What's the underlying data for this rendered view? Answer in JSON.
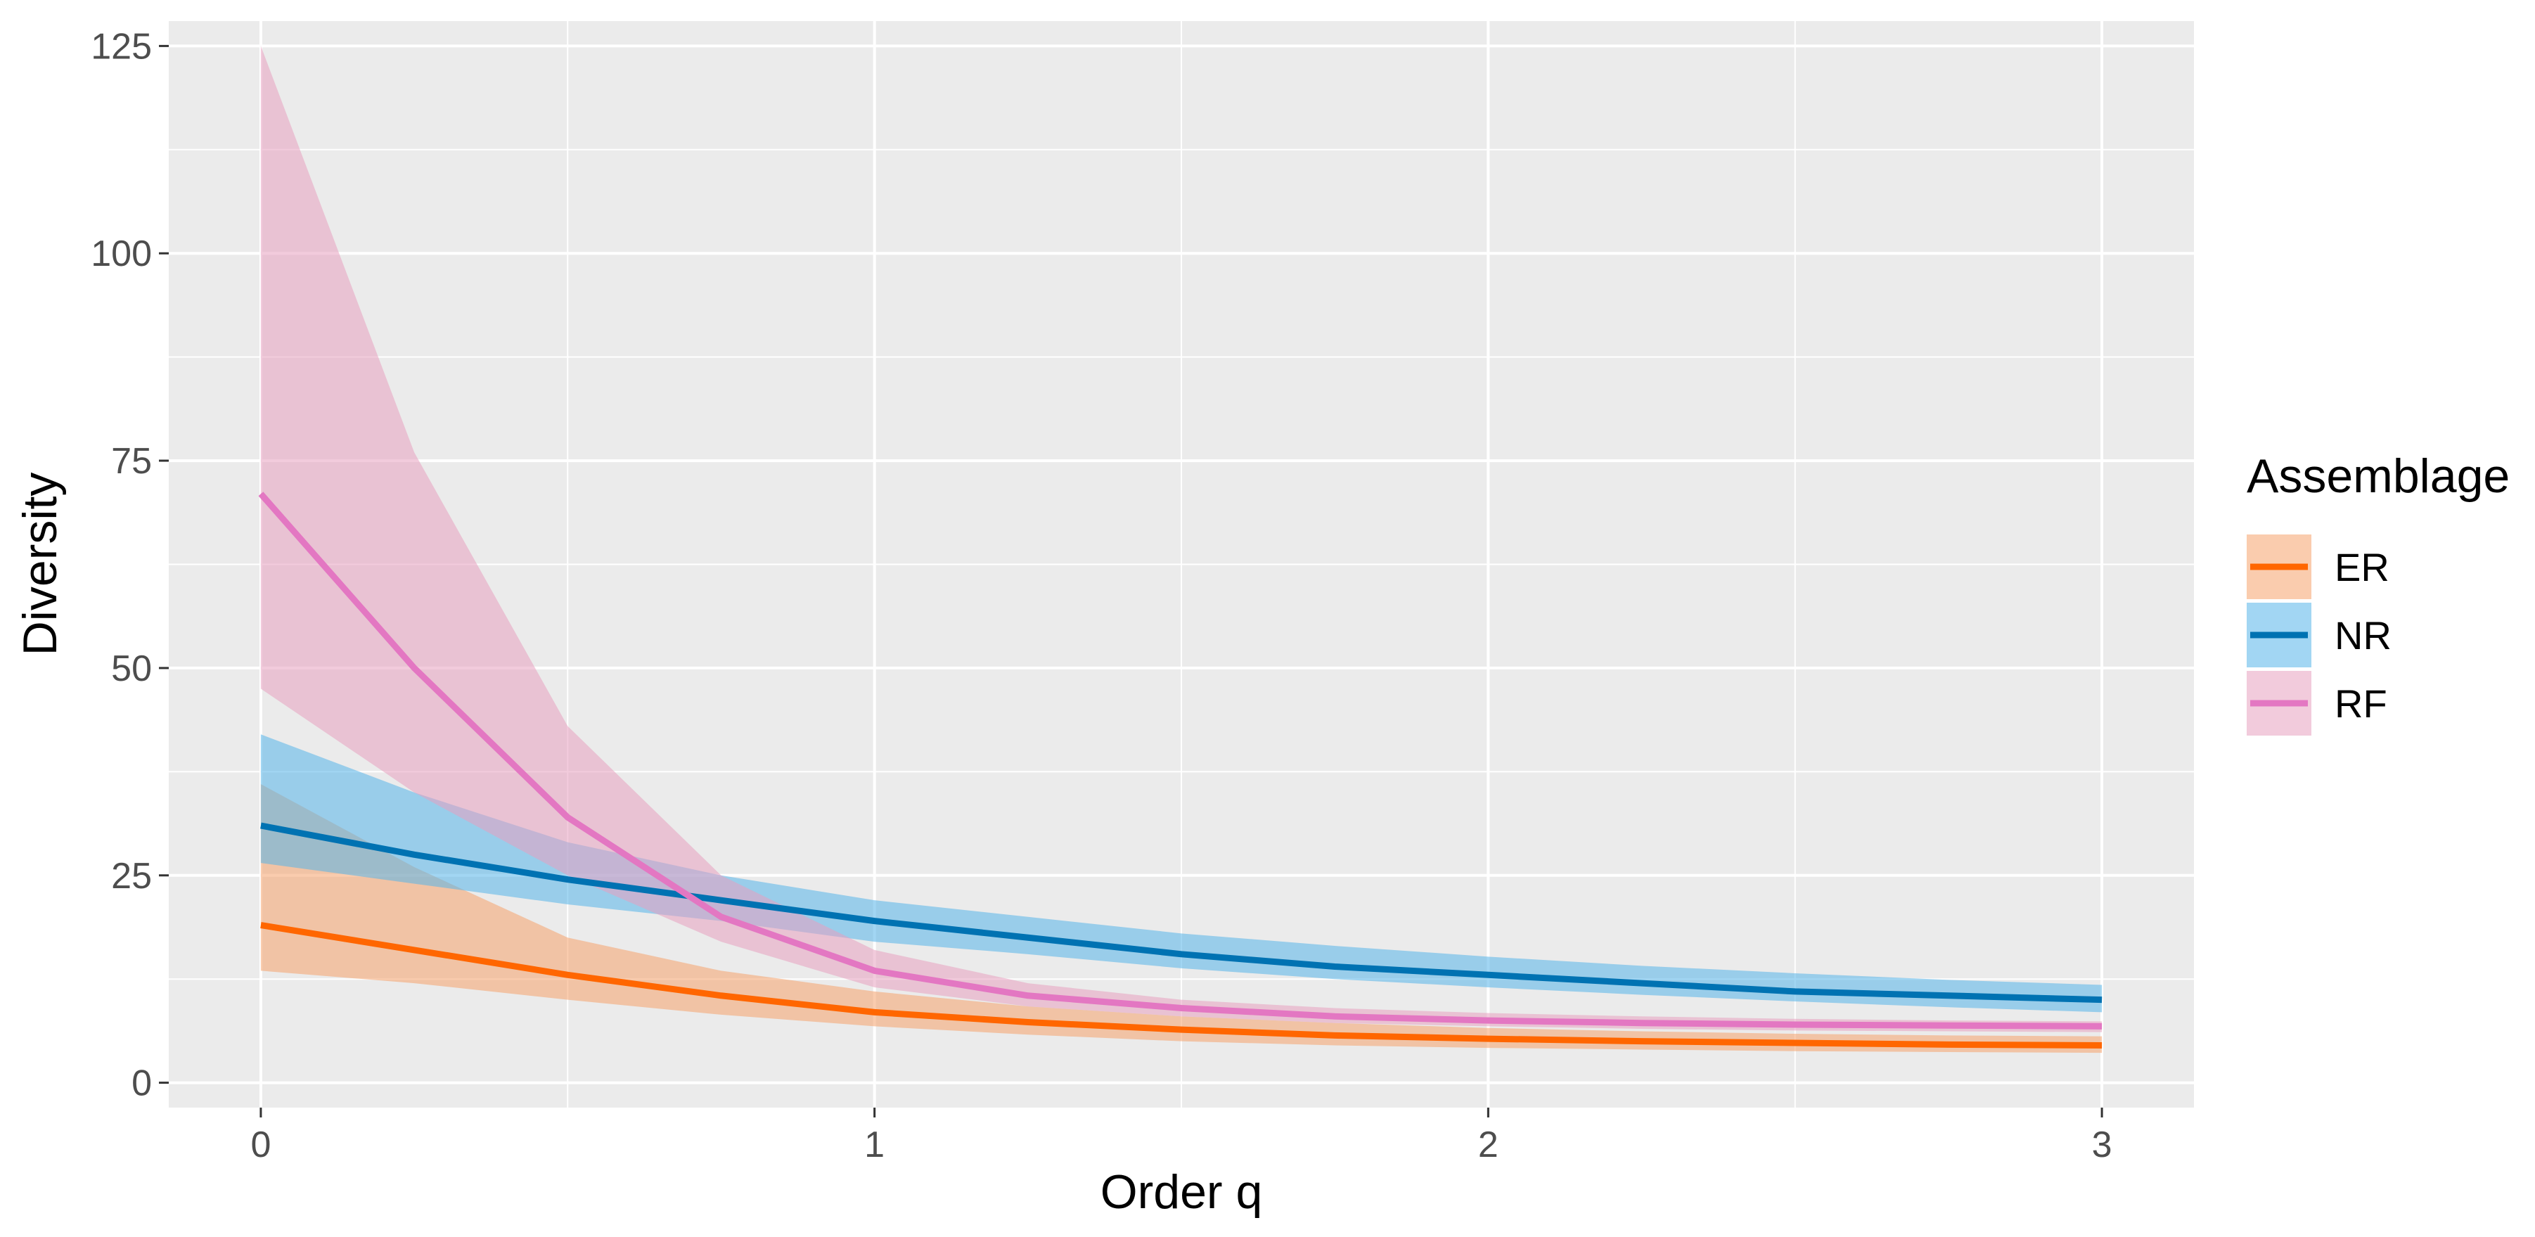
{
  "chart_data": {
    "type": "line",
    "title": "",
    "xlabel": "Order q",
    "ylabel": "Diversity",
    "xlim": [
      -0.15,
      3.15
    ],
    "ylim": [
      -3,
      128
    ],
    "x_ticks": [
      0,
      1,
      2,
      3
    ],
    "y_ticks": [
      0,
      25,
      50,
      75,
      100,
      125
    ],
    "grid": true,
    "legend": {
      "title": "Assemblage",
      "position": "right"
    },
    "x": [
      0,
      0.25,
      0.5,
      0.75,
      1,
      1.25,
      1.5,
      1.75,
      2,
      2.25,
      2.5,
      2.75,
      3
    ],
    "series": [
      {
        "name": "ER",
        "color": "#ff6600",
        "fill": "#f5a26c",
        "values": [
          19,
          16,
          13,
          10.5,
          8.5,
          7.3,
          6.4,
          5.7,
          5.3,
          5,
          4.8,
          4.6,
          4.5
        ],
        "lower": [
          13.5,
          12,
          10,
          8.2,
          6.8,
          5.8,
          5,
          4.5,
          4.2,
          4,
          3.8,
          3.7,
          3.6
        ],
        "upper": [
          36,
          26,
          17.5,
          13.5,
          11,
          9.2,
          8,
          7.2,
          6.6,
          6.2,
          5.9,
          5.7,
          5.6
        ]
      },
      {
        "name": "NR",
        "color": "#0072b2",
        "fill": "#56b4e9",
        "values": [
          31,
          27.5,
          24.5,
          22,
          19.5,
          17.5,
          15.5,
          14,
          13,
          12,
          11,
          10.5,
          10
        ],
        "lower": [
          26.5,
          24,
          21.5,
          19.5,
          17,
          15.5,
          13.8,
          12.5,
          11.5,
          10.6,
          9.8,
          9.1,
          8.5
        ],
        "upper": [
          42,
          35,
          29,
          25,
          22,
          20,
          18,
          16.5,
          15.2,
          14.1,
          13.2,
          12.4,
          11.8
        ]
      },
      {
        "name": "RF",
        "color": "#e377c2",
        "fill": "#e8a0c0",
        "values": [
          71,
          50,
          32,
          20,
          13.5,
          10.5,
          9,
          8,
          7.5,
          7.2,
          7,
          6.9,
          6.8
        ],
        "lower": [
          47.5,
          35,
          25,
          17,
          11.5,
          9.2,
          8,
          7.2,
          6.8,
          6.5,
          6.3,
          6.2,
          6.1
        ],
        "upper": [
          125,
          76,
          43,
          25,
          16,
          12,
          10,
          9,
          8.4,
          8,
          7.7,
          7.5,
          7.4
        ]
      }
    ]
  }
}
